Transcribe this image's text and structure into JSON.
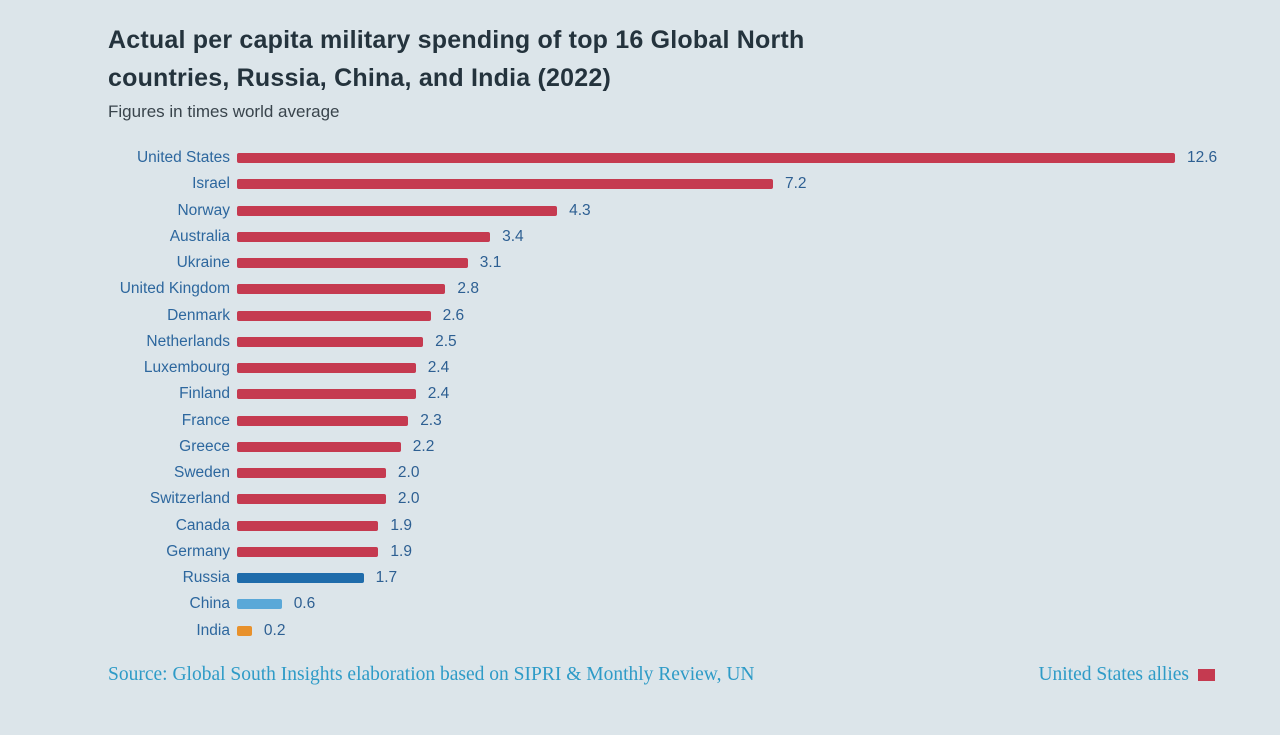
{
  "chart_data": {
    "type": "bar",
    "orientation": "horizontal",
    "title": "Actual per capita military spending of top 16 Global North countries, Russia, China, and India (2022)",
    "title_lines": [
      "Actual per capita military spending of top 16 Global North",
      "countries, Russia, China, and India (2022)"
    ],
    "subtitle": "Figures in times world average",
    "categories": [
      "United States",
      "Israel",
      "Norway",
      "Australia",
      "Ukraine",
      "United Kingdom",
      "Denmark",
      "Netherlands",
      "Luxembourg",
      "Finland",
      "France",
      "Greece",
      "Sweden",
      "Switzerland",
      "Canada",
      "Germany",
      "Russia",
      "China",
      "India"
    ],
    "values": [
      12.6,
      7.2,
      4.3,
      3.4,
      3.1,
      2.8,
      2.6,
      2.5,
      2.4,
      2.4,
      2.3,
      2.2,
      2.0,
      2.0,
      1.9,
      1.9,
      1.7,
      0.6,
      0.2
    ],
    "groups": [
      "us-ally",
      "us-ally",
      "us-ally",
      "us-ally",
      "us-ally",
      "us-ally",
      "us-ally",
      "us-ally",
      "us-ally",
      "us-ally",
      "us-ally",
      "us-ally",
      "us-ally",
      "us-ally",
      "us-ally",
      "us-ally",
      "russia",
      "china",
      "india"
    ],
    "colors": {
      "us-ally": "#c53a50",
      "russia": "#1f6cab",
      "china": "#5aa8d8",
      "india": "#e8912c"
    },
    "xlim": [
      0,
      12.6
    ],
    "value_labels_shown": true,
    "grid": false,
    "legend": {
      "label": "United States allies",
      "color": "#c53a50",
      "position": "bottom-right"
    },
    "source": "Source: Global South Insights elaboration based on SIPRI & Monthly Review, UN"
  },
  "style": {
    "background": "#dce5ea",
    "label_color": "#2d679e",
    "value_color": "#2d5f92",
    "title_color": "#24333d",
    "source_color": "#2e9bc7"
  }
}
